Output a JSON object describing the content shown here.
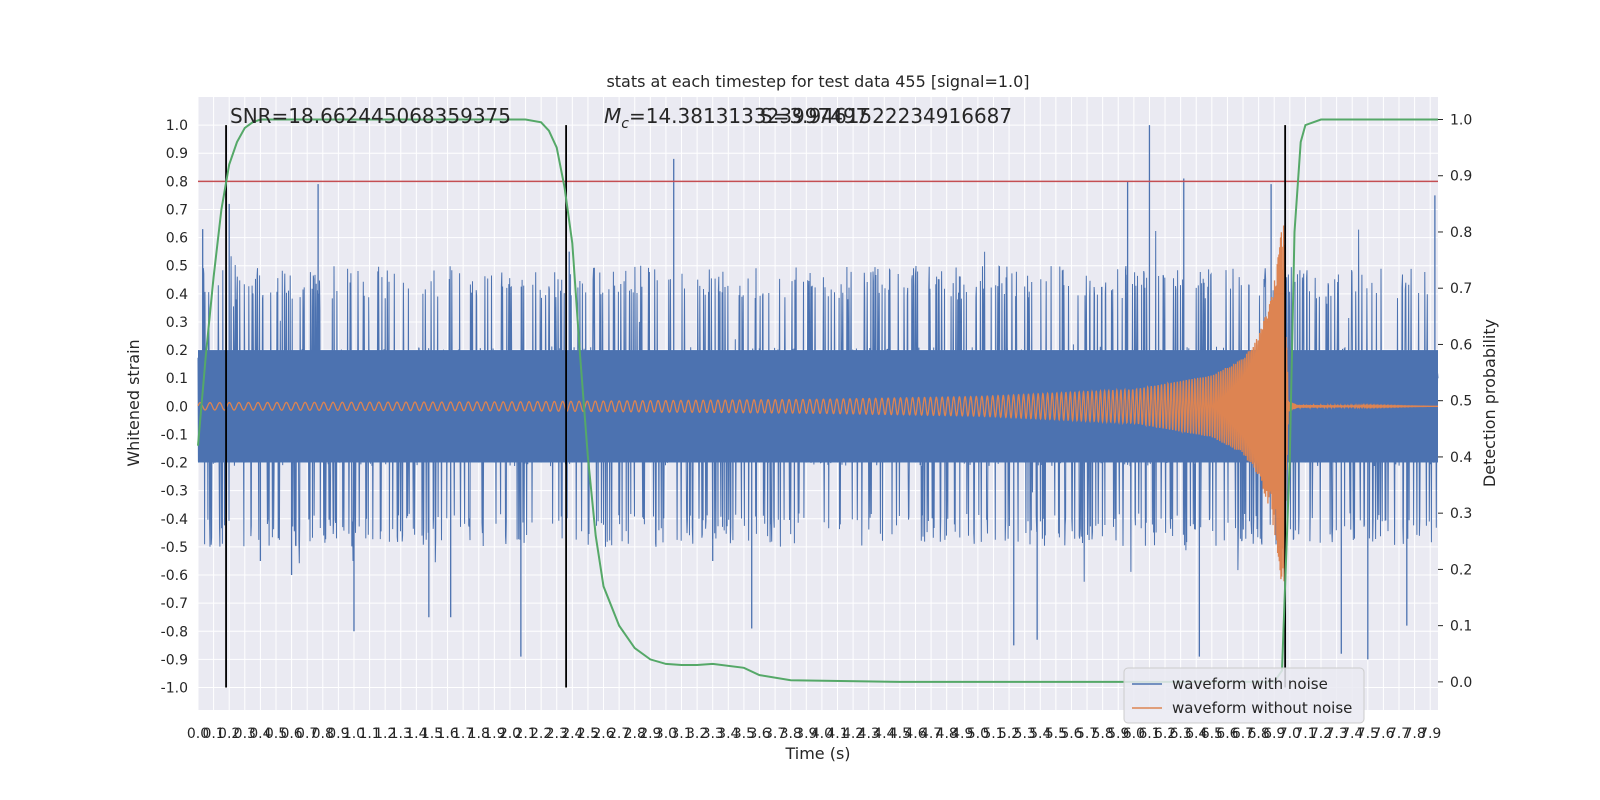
{
  "chart_data": {
    "type": "line",
    "title": "stats at each timestep for test data 455 [signal=1.0]",
    "xlabel": "Time (s)",
    "ylabel": "Whitened strain",
    "y2label": "Detection probability",
    "xlim": [
      0.0,
      7.95
    ],
    "ylim": [
      -1.08,
      1.1
    ],
    "y2lim": [
      -0.05,
      1.04
    ],
    "x_ticks": [
      "0.0",
      "0.1",
      "0.2",
      "0.3",
      "0.4",
      "0.5",
      "0.6",
      "0.7",
      "0.8",
      "0.9",
      "1.0",
      "1.1",
      "1.2",
      "1.3",
      "1.4",
      "1.5",
      "1.6",
      "1.7",
      "1.8",
      "1.9",
      "2.0",
      "2.1",
      "2.2",
      "2.3",
      "2.4",
      "2.5",
      "2.6",
      "2.7",
      "2.8",
      "2.9",
      "3.0",
      "3.1",
      "3.2",
      "3.3",
      "3.4",
      "3.5",
      "3.6",
      "3.7",
      "3.8",
      "3.9",
      "4.0",
      "4.1",
      "4.2",
      "4.3",
      "4.4",
      "4.5",
      "4.6",
      "4.7",
      "4.8",
      "4.9",
      "5.0",
      "5.1",
      "5.2",
      "5.3",
      "5.4",
      "5.5",
      "5.6",
      "5.7",
      "5.8",
      "5.9",
      "6.0",
      "6.1",
      "6.2",
      "6.3",
      "6.4",
      "6.5",
      "6.6",
      "6.7",
      "6.8",
      "6.9",
      "7.0",
      "7.1",
      "7.2",
      "7.3",
      "7.4",
      "7.5",
      "7.6",
      "7.7",
      "7.8",
      "7.9"
    ],
    "y_ticks": [
      "1.0",
      "0.9",
      "0.8",
      "0.7",
      "0.6",
      "0.5",
      "0.4",
      "0.3",
      "0.2",
      "0.1",
      "0.0",
      "-0.1",
      "-0.2",
      "-0.3",
      "-0.4",
      "-0.5",
      "-0.6",
      "-0.7",
      "-0.8",
      "-0.9",
      "-1.0"
    ],
    "y2_ticks": [
      "1.0",
      "0.9",
      "0.8",
      "0.7",
      "0.6",
      "0.5",
      "0.4",
      "0.3",
      "0.2",
      "0.1",
      "0.0"
    ],
    "annotations": {
      "snr": "SNR=18.662445068359375",
      "mc_prefix": "M",
      "mc_sub": "c",
      "mc_value": "=14.381313323997497",
      "s_value": "S=3.9461522234916687"
    },
    "threshold": 0.8,
    "vlines_x": [
      0.18,
      2.36,
      6.97
    ],
    "legend": {
      "placement": "lower-right",
      "items": [
        "waveform with noise",
        "waveform without noise"
      ]
    },
    "colors": {
      "noise": "#4c72b0",
      "clean": "#dd8452",
      "prob": "#55a868",
      "threshold": "#c44e52",
      "vline": "#000000",
      "axes_bg": "#eaeaf2",
      "grid": "#ffffff"
    },
    "detection_probability": {
      "x": [
        0.0,
        0.05,
        0.1,
        0.15,
        0.2,
        0.25,
        0.3,
        0.35,
        0.4,
        0.5,
        0.7,
        1.0,
        1.5,
        2.0,
        2.1,
        2.2,
        2.25,
        2.3,
        2.35,
        2.4,
        2.45,
        2.5,
        2.55,
        2.6,
        2.7,
        2.8,
        2.9,
        3.0,
        3.1,
        3.2,
        3.3,
        3.5,
        3.6,
        3.8,
        4.5,
        5.5,
        6.5,
        6.85,
        6.9,
        6.95,
        7.0,
        7.03,
        7.07,
        7.1,
        7.2,
        7.95
      ],
      "y": [
        0.42,
        0.58,
        0.72,
        0.84,
        0.92,
        0.96,
        0.985,
        0.995,
        1.0,
        1.0,
        1.0,
        1.0,
        1.0,
        1.0,
        1.0,
        0.995,
        0.98,
        0.95,
        0.88,
        0.78,
        0.58,
        0.4,
        0.26,
        0.17,
        0.1,
        0.06,
        0.04,
        0.032,
        0.03,
        0.03,
        0.032,
        0.025,
        0.012,
        0.003,
        0.0,
        0.0,
        0.0,
        0.0,
        0.0,
        0.02,
        0.4,
        0.8,
        0.96,
        0.99,
        1.0,
        1.0
      ]
    },
    "waveform_without_noise": {
      "description_free": true,
      "amplitude_x": [
        0.0,
        2.0,
        4.0,
        5.0,
        6.0,
        6.5,
        6.7,
        6.8,
        6.88,
        6.93,
        6.96,
        6.99,
        7.05,
        7.95
      ],
      "amplitude_y": [
        0.013,
        0.016,
        0.025,
        0.035,
        0.06,
        0.11,
        0.17,
        0.25,
        0.38,
        0.55,
        0.7,
        0.02,
        0.005,
        0.0
      ],
      "frequency_x": [
        0.0,
        2.0,
        4.0,
        5.0,
        6.0,
        6.5,
        6.8,
        6.95
      ],
      "frequency_y": [
        16,
        18,
        23,
        28,
        40,
        60,
        100,
        200
      ]
    },
    "waveform_with_noise": {
      "samples": 3000,
      "core_band": [
        -0.2,
        0.2
      ],
      "spike_extremes": [
        {
          "x": 0.03,
          "y": 0.63
        },
        {
          "x": 0.2,
          "y": 0.72
        },
        {
          "x": 0.4,
          "y": -0.55
        },
        {
          "x": 0.6,
          "y": -0.6
        },
        {
          "x": 0.77,
          "y": 0.79
        },
        {
          "x": 1.0,
          "y": -0.8
        },
        {
          "x": 1.48,
          "y": -0.75
        },
        {
          "x": 1.62,
          "y": -0.75
        },
        {
          "x": 2.07,
          "y": -0.89
        },
        {
          "x": 2.38,
          "y": 0.55
        },
        {
          "x": 3.05,
          "y": 0.88
        },
        {
          "x": 3.3,
          "y": -0.55
        },
        {
          "x": 3.55,
          "y": -0.79
        },
        {
          "x": 5.23,
          "y": -0.85
        },
        {
          "x": 5.38,
          "y": -0.83
        },
        {
          "x": 5.96,
          "y": 0.8
        },
        {
          "x": 6.1,
          "y": 1.0
        },
        {
          "x": 6.32,
          "y": 0.81
        },
        {
          "x": 6.42,
          "y": -0.89
        },
        {
          "x": 6.88,
          "y": 0.79
        },
        {
          "x": 7.33,
          "y": -0.88
        },
        {
          "x": 7.5,
          "y": -0.9
        },
        {
          "x": 7.75,
          "y": -0.78
        },
        {
          "x": 7.93,
          "y": 0.75
        }
      ]
    }
  }
}
